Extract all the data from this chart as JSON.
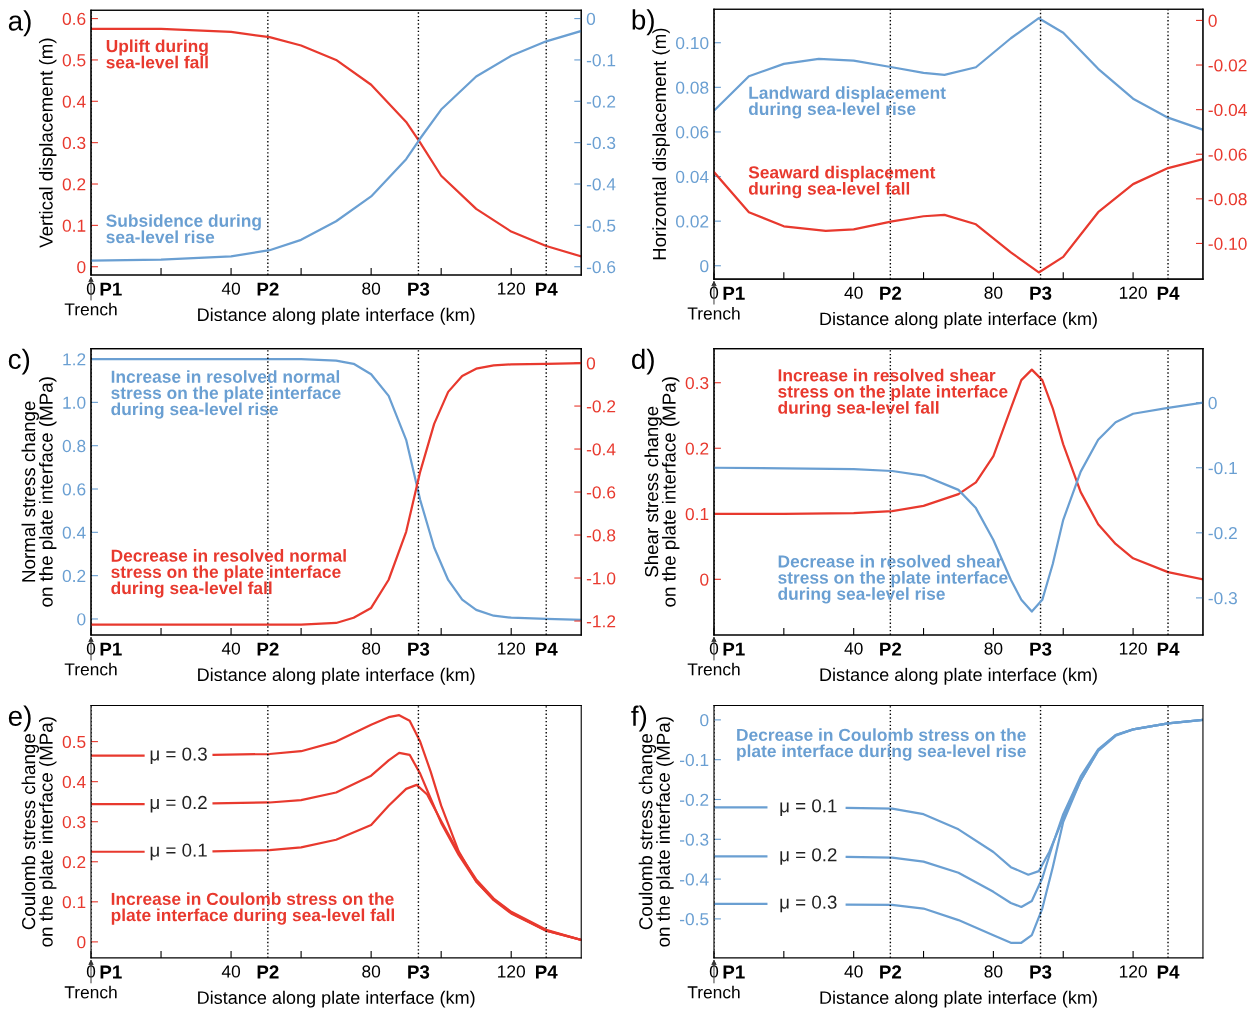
{
  "chart_data": [
    {
      "type": "line",
      "title": "a)",
      "xlabel": "Distance along plate interface (km)",
      "ylabel": "Vertical displacement (m)",
      "xlim": [
        0,
        140
      ],
      "xticks": [
        0,
        {
          "value": 20,
          "label": null
        },
        40,
        {
          "value": 60,
          "label": null
        },
        80,
        {
          "value": 100,
          "label": null
        },
        120
      ],
      "ylim": [
        -0.02,
        0.62
      ],
      "yticks": [
        0,
        0.1,
        0.2,
        0.3,
        0.4,
        0.5,
        0.6
      ],
      "y2lim": [
        -0.62,
        0.02
      ],
      "y2ticks": [
        0,
        -0.1,
        -0.2,
        -0.3,
        -0.4,
        -0.5,
        -0.6
      ],
      "ref_lines": [
        {
          "axis": "x",
          "value": 0,
          "label": "P1",
          "line_style": "dotted",
          "color": "#000000"
        },
        {
          "axis": "x",
          "value": 50.5,
          "label": "P2",
          "line_style": "dotted",
          "color": "#000000"
        },
        {
          "axis": "x",
          "value": 93.5,
          "label": "P3",
          "line_style": "dotted",
          "color": "#000000"
        },
        {
          "axis": "x",
          "value": 130,
          "label": "P4",
          "line_style": "dotted",
          "color": "#000000"
        }
      ],
      "annotations": [
        "Trench"
      ],
      "series": [
        {
          "name": "Uplift during\nsea-level fall",
          "color": "#e8392e",
          "x": [
            0,
            20,
            40,
            51,
            60,
            70,
            80,
            90,
            94,
            100,
            110,
            120,
            130,
            140
          ],
          "values": [
            0.575,
            0.575,
            0.568,
            0.555,
            0.535,
            0.5,
            0.44,
            0.35,
            0.3,
            0.22,
            0.14,
            0.085,
            0.05,
            0.025
          ]
        },
        {
          "name": "Subsidence during\nsea-level rise",
          "color": "#6a9fd2",
          "axis": "y2",
          "x": [
            0,
            20,
            40,
            51,
            60,
            70,
            80,
            90,
            94,
            100,
            110,
            120,
            130,
            140
          ],
          "values": [
            -0.585,
            -0.583,
            -0.575,
            -0.56,
            -0.535,
            -0.49,
            -0.43,
            -0.34,
            -0.29,
            -0.22,
            -0.14,
            -0.09,
            -0.055,
            -0.03
          ]
        }
      ]
    },
    {
      "type": "line",
      "title": "b)",
      "xlabel": "Distance along plate interface (km)",
      "ylabel": "Horizontal displacement (m)",
      "xlim": [
        0,
        140
      ],
      "xticks": [
        0,
        {
          "value": 20,
          "label": null
        },
        40,
        {
          "value": 60,
          "label": null
        },
        80,
        {
          "value": 100,
          "label": null
        },
        120
      ],
      "ylim": [
        -0.006,
        0.115
      ],
      "yticks": [
        0,
        0.02,
        0.04,
        0.06,
        0.08,
        {
          "value": 0.1,
          "label": "0.10"
        }
      ],
      "y2lim": [
        -0.116,
        0.005
      ],
      "y2ticks": [
        0,
        -0.02,
        -0.04,
        -0.06,
        -0.08,
        {
          "value": -0.1,
          "label": "-0.10"
        }
      ],
      "ref_lines": [
        {
          "axis": "x",
          "value": 0,
          "label": "P1",
          "line_style": "dotted",
          "color": "#000000"
        },
        {
          "axis": "x",
          "value": 50.5,
          "label": "P2",
          "line_style": "dotted",
          "color": "#000000"
        },
        {
          "axis": "x",
          "value": 93.5,
          "label": "P3",
          "line_style": "dotted",
          "color": "#000000"
        },
        {
          "axis": "x",
          "value": 130,
          "label": "P4",
          "line_style": "dotted",
          "color": "#000000"
        }
      ],
      "annotations": [
        "Trench"
      ],
      "series": [
        {
          "name": "Landward displacement\nduring sea-level rise",
          "color": "#6a9fd2",
          "x": [
            0,
            10,
            20,
            30,
            40,
            51,
            60,
            66,
            75,
            85,
            93,
            100,
            110,
            120,
            130,
            140
          ],
          "values": [
            0.0695,
            0.085,
            0.0905,
            0.0928,
            0.092,
            0.089,
            0.0865,
            0.0856,
            0.089,
            0.102,
            0.111,
            0.1045,
            0.0883,
            0.0749,
            0.0664,
            0.061
          ]
        },
        {
          "name": "Seaward displacement\nduring sea-level fall",
          "color": "#e8392e",
          "axis": "y2",
          "x": [
            0,
            10,
            20,
            32,
            40,
            51,
            60,
            66,
            75,
            85,
            93,
            100,
            110,
            120,
            130,
            140
          ],
          "values": [
            -0.068,
            -0.086,
            -0.0923,
            -0.0944,
            -0.0937,
            -0.0901,
            -0.0878,
            -0.0872,
            -0.0914,
            -0.104,
            -0.113,
            -0.106,
            -0.086,
            -0.0734,
            -0.0662,
            -0.0622
          ]
        }
      ]
    },
    {
      "type": "line",
      "title": "c)",
      "xlabel": "Distance along plate interface (km)",
      "ylabel": "Normal stress change\non the plate interface (MPa)",
      "xlim": [
        0,
        140
      ],
      "xticks": [
        0,
        {
          "value": 20,
          "label": null
        },
        40,
        {
          "value": 60,
          "label": null
        },
        80,
        {
          "value": 100,
          "label": null
        },
        120
      ],
      "ylim": [
        -0.074,
        1.248
      ],
      "yticks": [
        0,
        0.2,
        0.4,
        0.6,
        0.8,
        {
          "value": 1,
          "label": "1.0"
        },
        1.2
      ],
      "y2lim": [
        -1.265,
        0.067
      ],
      "y2ticks": [
        0,
        -0.2,
        -0.4,
        -0.6,
        -0.8,
        {
          "value": -1,
          "label": "-1.0"
        },
        -1.2
      ],
      "ref_lines": [
        {
          "axis": "x",
          "value": 0,
          "label": "P1",
          "line_style": "dotted",
          "color": "#000000"
        },
        {
          "axis": "x",
          "value": 50.5,
          "label": "P2",
          "line_style": "dotted",
          "color": "#000000"
        },
        {
          "axis": "x",
          "value": 93.5,
          "label": "P3",
          "line_style": "dotted",
          "color": "#000000"
        },
        {
          "axis": "x",
          "value": 130,
          "label": "P4",
          "line_style": "dotted",
          "color": "#000000"
        }
      ],
      "annotations": [
        "Trench"
      ],
      "series": [
        {
          "name": "Increase in resolved normal\nstress on the plate interface\nduring sea-level rise",
          "color": "#6a9fd2",
          "x": [
            0,
            40,
            60,
            70,
            75,
            80,
            85,
            90,
            94,
            98,
            102,
            106,
            110,
            115,
            120,
            130,
            140
          ],
          "values": [
            1.2,
            1.2,
            1.2,
            1.193,
            1.178,
            1.13,
            1.03,
            0.827,
            0.55,
            0.33,
            0.18,
            0.089,
            0.042,
            0.015,
            0.006,
            0,
            -0.004
          ]
        },
        {
          "name": "Decrease in resolved normal\nstress on the plate interface\nduring sea-level fall",
          "color": "#e8392e",
          "axis": "y2",
          "x": [
            0,
            40,
            60,
            70,
            75,
            80,
            85,
            90,
            94,
            98,
            102,
            106,
            110,
            115,
            120,
            130,
            140
          ],
          "values": [
            -1.217,
            -1.217,
            -1.217,
            -1.209,
            -1.185,
            -1.139,
            -1.008,
            -0.785,
            -0.506,
            -0.283,
            -0.134,
            -0.06,
            -0.026,
            -0.011,
            -0.006,
            -0.004,
            0
          ]
        }
      ]
    },
    {
      "type": "line",
      "title": "d)",
      "xlabel": "Distance along plate interface (km)",
      "ylabel": "Shear stress change\non the plate interface (MPa)",
      "xlim": [
        0,
        140
      ],
      "xticks": [
        0,
        {
          "value": 20,
          "label": null
        },
        40,
        {
          "value": 60,
          "label": null
        },
        80,
        {
          "value": 100,
          "label": null
        },
        120
      ],
      "ylim": [
        -0.085,
        0.352
      ],
      "yticks": [
        0,
        0.1,
        0.2,
        0.3
      ],
      "y2lim": [
        -0.357,
        0.083
      ],
      "y2ticks": [
        0,
        -0.1,
        -0.2,
        -0.3
      ],
      "ref_lines": [
        {
          "axis": "x",
          "value": 0,
          "label": "P1",
          "line_style": "dotted",
          "color": "#000000"
        },
        {
          "axis": "x",
          "value": 50.5,
          "label": "P2",
          "line_style": "dotted",
          "color": "#000000"
        },
        {
          "axis": "x",
          "value": 93.5,
          "label": "P3",
          "line_style": "dotted",
          "color": "#000000"
        },
        {
          "axis": "x",
          "value": 130,
          "label": "P4",
          "line_style": "dotted",
          "color": "#000000"
        }
      ],
      "annotations": [
        "Trench"
      ],
      "series": [
        {
          "name": "Increase in resolved shear\nstress on the plate interface\nduring sea-level fall",
          "color": "#e8392e",
          "x": [
            0,
            20,
            40,
            51,
            60,
            70,
            75,
            80,
            85,
            88,
            91,
            94,
            97,
            100,
            105,
            110,
            115,
            120,
            130,
            140
          ],
          "values": [
            0.1,
            0.1,
            0.101,
            0.104,
            0.112,
            0.13,
            0.148,
            0.188,
            0.261,
            0.304,
            0.32,
            0.304,
            0.261,
            0.206,
            0.133,
            0.084,
            0.054,
            0.032,
            0.011,
            0
          ]
        },
        {
          "name": "Decrease in resolved shear\nstress on the plate interface\nduring sea-level rise",
          "color": "#6a9fd2",
          "axis": "y2",
          "x": [
            0,
            40,
            51,
            60,
            70,
            75,
            80,
            85,
            88,
            91,
            94,
            97,
            100,
            105,
            110,
            115,
            120,
            130,
            140
          ],
          "values": [
            -0.1,
            -0.102,
            -0.105,
            -0.112,
            -0.134,
            -0.162,
            -0.211,
            -0.272,
            -0.303,
            -0.321,
            -0.303,
            -0.248,
            -0.18,
            -0.106,
            -0.057,
            -0.03,
            -0.017,
            -0.008,
            0
          ]
        }
      ]
    },
    {
      "type": "line",
      "title": "e)",
      "xlabel": "Distance along plate interface (km)",
      "ylabel": "Coulomb stress change\non the plate interface (MPa)",
      "xlim": [
        0,
        140
      ],
      "xticks": [
        0,
        {
          "value": 20,
          "label": null
        },
        40,
        {
          "value": 60,
          "label": null
        },
        80,
        {
          "value": 100,
          "label": null
        },
        120
      ],
      "ylim": [
        -0.04,
        0.59
      ],
      "yticks": [
        0,
        0.1,
        0.2,
        0.3,
        0.4,
        0.5
      ],
      "ref_lines": [
        {
          "axis": "x",
          "value": 0,
          "label": "P1",
          "line_style": "dotted",
          "color": "#000000"
        },
        {
          "axis": "x",
          "value": 50.5,
          "label": "P2",
          "line_style": "dotted",
          "color": "#000000"
        },
        {
          "axis": "x",
          "value": 93.5,
          "label": "P3",
          "line_style": "dotted",
          "color": "#000000"
        },
        {
          "axis": "x",
          "value": 130,
          "label": "P4",
          "line_style": "dotted",
          "color": "#000000"
        }
      ],
      "annotations": [
        "Trench",
        "Increase in Coulomb stress on the\nplate interface during sea-level fall"
      ],
      "series": [
        {
          "name": "μ = 0.3",
          "color": "#e8392e",
          "x": [
            0,
            15,
            25,
            35,
            51,
            60,
            70,
            80,
            85,
            88,
            91,
            94,
            97,
            100,
            105,
            110,
            115,
            120,
            130,
            140
          ],
          "values": [
            0.465,
            0.465,
            null,
            0.467,
            0.469,
            0.476,
            0.5,
            0.542,
            0.561,
            0.566,
            0.552,
            0.5,
            0.425,
            0.34,
            0.226,
            0.151,
            0.104,
            0.071,
            0.028,
            0.005
          ]
        },
        {
          "name": "μ = 0.2",
          "color": "#e8392e",
          "x": [
            0,
            15,
            25,
            35,
            51,
            60,
            70,
            80,
            85,
            88,
            91,
            94,
            97,
            100,
            105,
            110,
            115,
            120,
            130,
            140
          ],
          "values": [
            0.344,
            0.344,
            null,
            0.346,
            0.348,
            0.354,
            0.373,
            0.415,
            0.453,
            0.472,
            0.467,
            0.42,
            0.358,
            0.297,
            0.217,
            0.151,
            0.106,
            0.073,
            0.028,
            0.005
          ]
        },
        {
          "name": "μ = 0.1",
          "color": "#e8392e",
          "x": [
            0,
            15,
            25,
            35,
            51,
            60,
            70,
            80,
            85,
            90,
            93,
            96,
            100,
            105,
            110,
            115,
            120,
            130,
            140
          ],
          "values": [
            0.225,
            0.225,
            null,
            0.226,
            0.229,
            0.236,
            0.255,
            0.292,
            0.34,
            0.382,
            0.392,
            0.368,
            0.302,
            0.222,
            0.156,
            0.108,
            0.075,
            0.03,
            0.005
          ]
        }
      ]
    },
    {
      "type": "line",
      "title": "f)",
      "xlabel": "Distance along plate interface (km)",
      "ylabel": "Coulomb stress change\non the plate interface (MPa)",
      "xlim": [
        0,
        140
      ],
      "xticks": [
        0,
        {
          "value": 20,
          "label": null
        },
        40,
        {
          "value": 60,
          "label": null
        },
        80,
        {
          "value": 100,
          "label": null
        },
        120
      ],
      "ylim": [
        -0.598,
        0.036
      ],
      "yticks": [
        0,
        -0.1,
        -0.2,
        -0.3,
        -0.4,
        -0.5
      ],
      "ref_lines": [
        {
          "axis": "x",
          "value": 0,
          "label": "P1",
          "line_style": "dotted",
          "color": "#000000"
        },
        {
          "axis": "x",
          "value": 50.5,
          "label": "P2",
          "line_style": "dotted",
          "color": "#000000"
        },
        {
          "axis": "x",
          "value": 93.5,
          "label": "P3",
          "line_style": "dotted",
          "color": "#000000"
        },
        {
          "axis": "x",
          "value": 130,
          "label": "P4",
          "line_style": "dotted",
          "color": "#000000"
        }
      ],
      "annotations": [
        "Trench",
        "Decrease in Coulomb stress on the\nplate interface during sea-level rise"
      ],
      "series": [
        {
          "name": "μ = 0.1",
          "color": "#6a9fd2",
          "x": [
            0,
            15,
            27,
            38,
            51,
            60,
            70,
            80,
            85,
            90,
            93,
            96,
            100,
            105,
            110,
            115,
            120,
            130,
            140
          ],
          "values": [
            -0.22,
            -0.22,
            null,
            -0.221,
            -0.223,
            -0.237,
            -0.275,
            -0.332,
            -0.37,
            -0.389,
            -0.38,
            -0.332,
            -0.247,
            -0.152,
            -0.076,
            -0.038,
            -0.024,
            -0.009,
            0
          ]
        },
        {
          "name": "μ = 0.2",
          "color": "#6a9fd2",
          "x": [
            0,
            15,
            27,
            38,
            51,
            60,
            70,
            80,
            85,
            88,
            91,
            94,
            97,
            100,
            105,
            110,
            115,
            120,
            130,
            140
          ],
          "values": [
            -0.343,
            -0.343,
            null,
            -0.344,
            -0.346,
            -0.356,
            -0.384,
            -0.432,
            -0.46,
            -0.47,
            -0.455,
            -0.398,
            -0.313,
            -0.237,
            -0.142,
            -0.074,
            -0.038,
            -0.024,
            -0.009,
            0
          ]
        },
        {
          "name": "μ = 0.3",
          "color": "#6a9fd2",
          "x": [
            0,
            15,
            27,
            38,
            51,
            60,
            70,
            80,
            85,
            88,
            91,
            94,
            97,
            100,
            105,
            110,
            115,
            120,
            130,
            140
          ],
          "values": [
            -0.462,
            -0.462,
            null,
            -0.464,
            -0.465,
            -0.474,
            -0.503,
            -0.541,
            -0.56,
            -0.56,
            -0.541,
            -0.474,
            -0.37,
            -0.256,
            -0.152,
            -0.078,
            -0.04,
            -0.024,
            -0.009,
            0
          ]
        }
      ]
    }
  ]
}
